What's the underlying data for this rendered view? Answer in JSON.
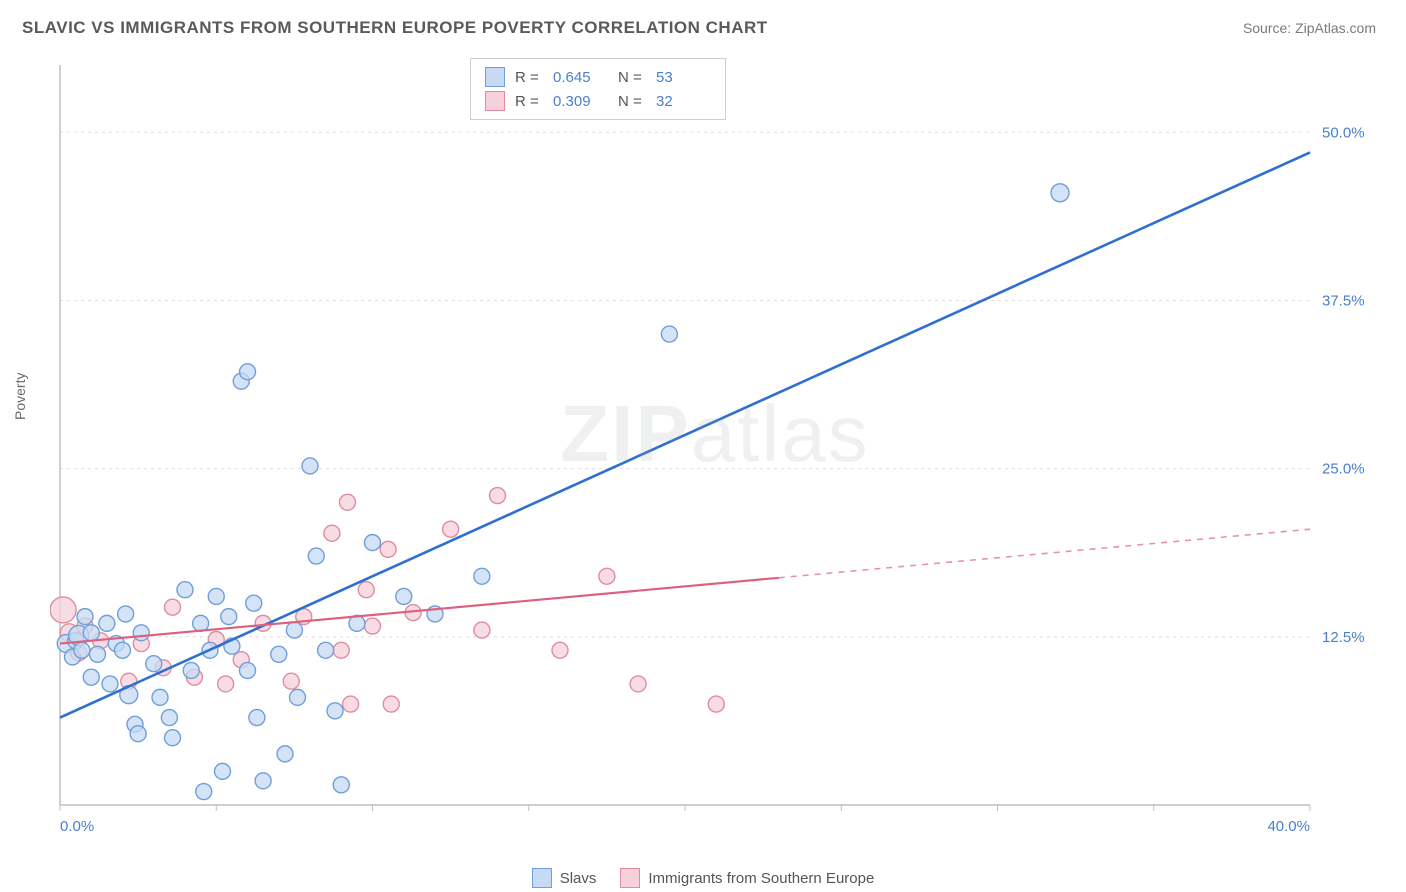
{
  "title": "SLAVIC VS IMMIGRANTS FROM SOUTHERN EUROPE POVERTY CORRELATION CHART",
  "source": "Source: ZipAtlas.com",
  "watermark": "ZIPatlas",
  "ylabel": "Poverty",
  "chart": {
    "type": "scatter",
    "background_color": "#ffffff",
    "grid_color": "#dddddd",
    "axis_color": "#bfbfbf",
    "tick_color": "#bfbfbf",
    "axis_label_color": "#4a7fc9",
    "axis_label_fontsize": 15,
    "xlim": [
      0,
      40
    ],
    "ylim": [
      0,
      55
    ],
    "xtick_step": 5,
    "xticks_labeled": [
      {
        "v": 0,
        "label": "0.0%"
      },
      {
        "v": 40,
        "label": "40.0%"
      }
    ],
    "yticks": [
      {
        "v": 12.5,
        "label": "12.5%"
      },
      {
        "v": 25.0,
        "label": "25.0%"
      },
      {
        "v": 37.5,
        "label": "37.5%"
      },
      {
        "v": 50.0,
        "label": "50.0%"
      }
    ],
    "series": [
      {
        "id": "slavs",
        "label": "Slavs",
        "marker_fill": "#c6dbf3",
        "marker_stroke": "#6f9fd8",
        "line_color": "#2f6fcf",
        "line_width": 2.6,
        "r": 0.645,
        "n": 53,
        "regression": {
          "x1": 0,
          "y1": 6.5,
          "x2": 40,
          "y2": 48.5,
          "solid_to_x": 40
        },
        "points": [
          [
            0.2,
            12.0,
            9
          ],
          [
            0.4,
            11.0,
            8
          ],
          [
            0.5,
            12.2,
            8
          ],
          [
            0.6,
            12.6,
            10
          ],
          [
            0.7,
            11.5,
            8
          ],
          [
            0.8,
            14.0,
            8
          ],
          [
            1.0,
            12.8,
            8
          ],
          [
            1.0,
            9.5,
            8
          ],
          [
            1.2,
            11.2,
            8
          ],
          [
            1.5,
            13.5,
            8
          ],
          [
            1.6,
            9.0,
            8
          ],
          [
            1.8,
            12.0,
            8
          ],
          [
            2.0,
            11.5,
            8
          ],
          [
            2.1,
            14.2,
            8
          ],
          [
            2.2,
            8.2,
            9
          ],
          [
            2.4,
            6.0,
            8
          ],
          [
            2.5,
            5.3,
            8
          ],
          [
            2.6,
            12.8,
            8
          ],
          [
            3.0,
            10.5,
            8
          ],
          [
            3.2,
            8.0,
            8
          ],
          [
            3.5,
            6.5,
            8
          ],
          [
            3.6,
            5.0,
            8
          ],
          [
            4.0,
            16.0,
            8
          ],
          [
            4.2,
            10.0,
            8
          ],
          [
            4.5,
            13.5,
            8
          ],
          [
            4.6,
            1.0,
            8
          ],
          [
            4.8,
            11.5,
            8
          ],
          [
            5.0,
            15.5,
            8
          ],
          [
            5.2,
            2.5,
            8
          ],
          [
            5.4,
            14.0,
            8
          ],
          [
            5.5,
            11.8,
            8
          ],
          [
            5.8,
            31.5,
            8
          ],
          [
            6.0,
            32.2,
            8
          ],
          [
            6.0,
            10.0,
            8
          ],
          [
            6.2,
            15.0,
            8
          ],
          [
            6.3,
            6.5,
            8
          ],
          [
            6.5,
            1.8,
            8
          ],
          [
            7.0,
            11.2,
            8
          ],
          [
            7.2,
            3.8,
            8
          ],
          [
            7.5,
            13.0,
            8
          ],
          [
            7.6,
            8.0,
            8
          ],
          [
            8.0,
            25.2,
            8
          ],
          [
            8.2,
            18.5,
            8
          ],
          [
            8.5,
            11.5,
            8
          ],
          [
            8.8,
            7.0,
            8
          ],
          [
            9.0,
            1.5,
            8
          ],
          [
            9.5,
            13.5,
            8
          ],
          [
            10.0,
            19.5,
            8
          ],
          [
            11.0,
            15.5,
            8
          ],
          [
            12.0,
            14.2,
            8
          ],
          [
            13.5,
            17.0,
            8
          ],
          [
            19.5,
            35.0,
            8
          ],
          [
            32.0,
            45.5,
            9
          ]
        ]
      },
      {
        "id": "southern",
        "label": "Immigrants from Southern Europe",
        "marker_fill": "#f6d0da",
        "marker_stroke": "#e08ba2",
        "line_color": "#de5f7e",
        "line_width": 2.2,
        "r": 0.309,
        "n": 32,
        "regression": {
          "x1": 0,
          "y1": 12.0,
          "x2": 40,
          "y2": 20.5,
          "solid_to_x": 23
        },
        "points": [
          [
            0.1,
            14.5,
            13
          ],
          [
            0.3,
            12.8,
            9
          ],
          [
            0.6,
            11.3,
            8
          ],
          [
            0.8,
            13.3,
            8
          ],
          [
            1.3,
            12.2,
            8
          ],
          [
            2.2,
            9.2,
            8
          ],
          [
            2.6,
            12.0,
            8
          ],
          [
            3.3,
            10.2,
            8
          ],
          [
            3.6,
            14.7,
            8
          ],
          [
            4.3,
            9.5,
            8
          ],
          [
            5.0,
            12.3,
            8
          ],
          [
            5.3,
            9.0,
            8
          ],
          [
            5.8,
            10.8,
            8
          ],
          [
            6.5,
            13.5,
            8
          ],
          [
            7.4,
            9.2,
            8
          ],
          [
            7.8,
            14.0,
            8
          ],
          [
            8.7,
            20.2,
            8
          ],
          [
            9.0,
            11.5,
            8
          ],
          [
            9.2,
            22.5,
            8
          ],
          [
            9.3,
            7.5,
            8
          ],
          [
            9.8,
            16.0,
            8
          ],
          [
            10.0,
            13.3,
            8
          ],
          [
            10.5,
            19.0,
            8
          ],
          [
            10.6,
            7.5,
            8
          ],
          [
            11.3,
            14.3,
            8
          ],
          [
            12.5,
            20.5,
            8
          ],
          [
            13.5,
            13.0,
            8
          ],
          [
            14.0,
            23.0,
            8
          ],
          [
            16.0,
            11.5,
            8
          ],
          [
            17.5,
            17.0,
            8
          ],
          [
            18.5,
            9.0,
            8
          ],
          [
            21.0,
            7.5,
            8
          ]
        ]
      }
    ]
  },
  "legend_top": {
    "r_label": "R =",
    "n_label": "N ="
  },
  "legend_bottom": {}
}
